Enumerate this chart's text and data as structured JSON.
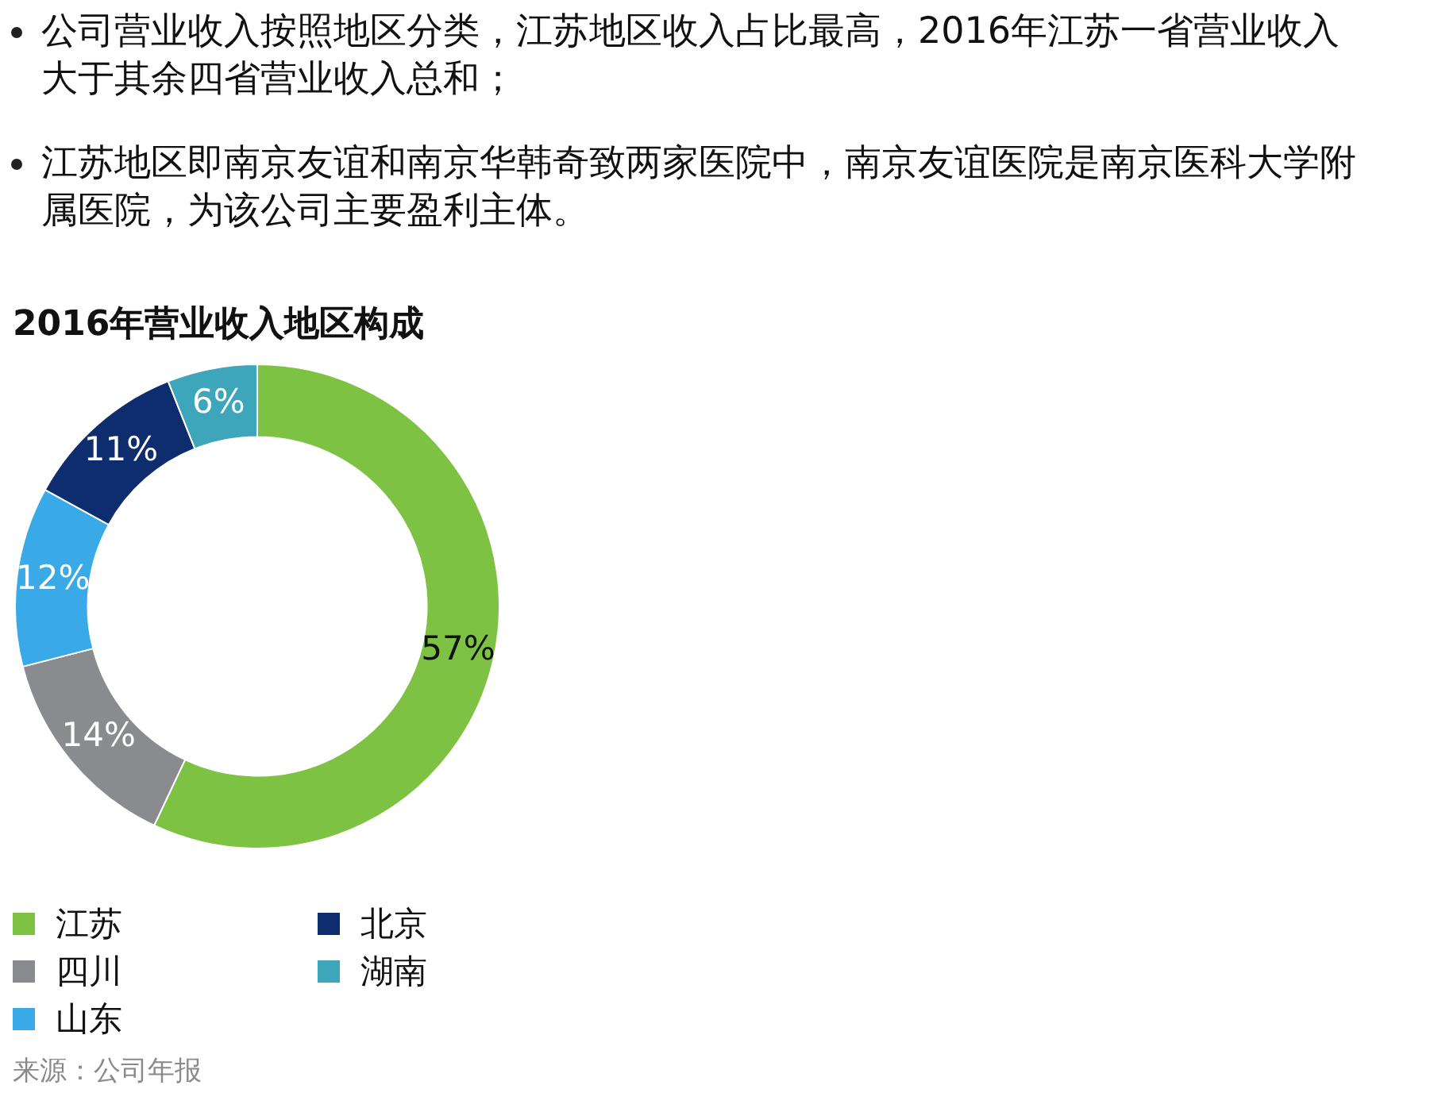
{
  "chart_data": {
    "type": "donut",
    "title": "2016年营业收入地区构成",
    "categories": [
      "江苏",
      "四川",
      "山东",
      "北京",
      "湖南"
    ],
    "values": [
      57,
      14,
      12,
      11,
      6
    ],
    "colors": [
      "#7dc242",
      "#8a8b8f",
      "#3aa9e8",
      "#0d2d6e",
      "#3ea6ba"
    ],
    "value_labels": [
      "57%",
      "14%",
      "12%",
      "11%",
      "6%"
    ],
    "legend": "bottom left",
    "annotations": [
      "公司营业收入按照地区分类，江苏地区收入占比最高，2016年江苏一省营业收入大于其余四省营业收入总和；",
      "江苏地区即南京友谊和南京华韩奇致两家医院中，南京友谊医院是南京医科大学附属医院，为该公司主要盈利主体。",
      "来源：公司年报"
    ]
  }
}
